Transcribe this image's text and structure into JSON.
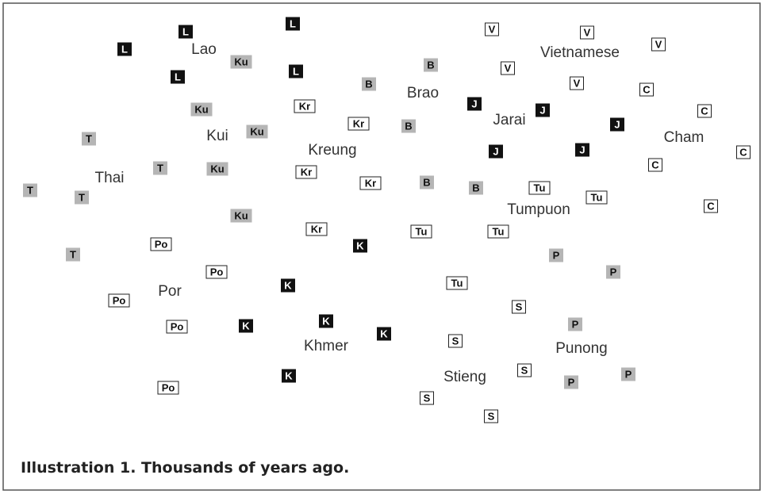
{
  "groups": [
    {
      "label": "Lao",
      "code": "L"
    },
    {
      "label": "Kui",
      "code": "Ku"
    },
    {
      "label": "Thai",
      "code": "T"
    },
    {
      "label": "Por",
      "code": "Po"
    },
    {
      "label": "Kreung",
      "code": "Kr"
    },
    {
      "label": "Khmer",
      "code": "K"
    },
    {
      "label": "Brao",
      "code": "B"
    },
    {
      "label": "Jarai",
      "code": "J"
    },
    {
      "label": "Vietnamese",
      "code": "V"
    },
    {
      "label": "Cham",
      "code": "C"
    },
    {
      "label": "Tumpuon",
      "code": "Tu"
    },
    {
      "label": "Punong",
      "code": "P"
    },
    {
      "label": "Stieng",
      "code": "S"
    }
  ],
  "caption": "Illustration 1. Thousands of years ago."
}
